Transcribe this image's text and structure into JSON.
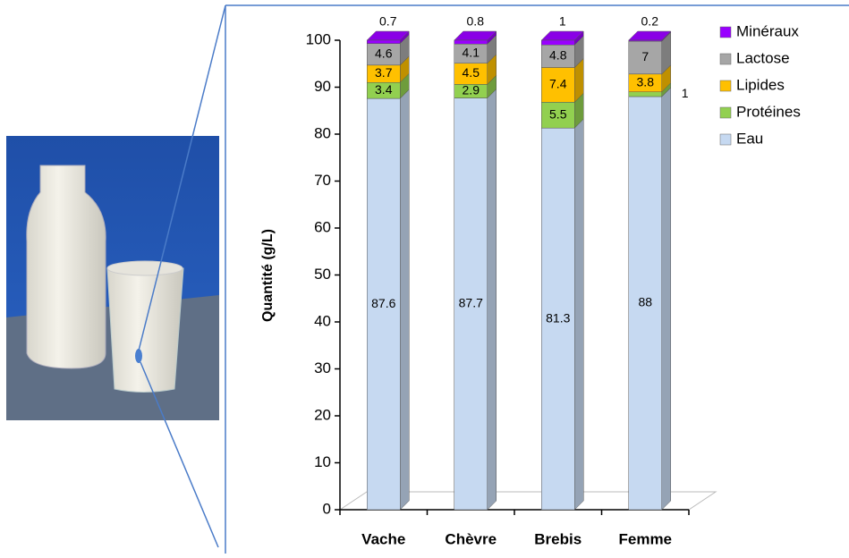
{
  "chart_data": {
    "type": "bar",
    "stacked": true,
    "y_label": "Quantité  (g/L)",
    "categories": [
      "Vache",
      "Chèvre",
      "Brebis",
      "Femme"
    ],
    "series": [
      {
        "name": "Eau",
        "color": "#c6d9f1",
        "values": [
          87.6,
          87.7,
          81.3,
          88
        ]
      },
      {
        "name": "Protéines",
        "color": "#92d050",
        "values": [
          3.4,
          2.9,
          5.5,
          1
        ]
      },
      {
        "name": "Lipides",
        "color": "#ffc000",
        "values": [
          3.7,
          4.5,
          7.4,
          3.8
        ]
      },
      {
        "name": "Lactose",
        "color": "#a6a6a6",
        "values": [
          4.6,
          4.1,
          4.8,
          7
        ]
      },
      {
        "name": "Minéraux",
        "color": "#9900ff",
        "values": [
          0.7,
          0.8,
          1,
          0.2
        ]
      }
    ],
    "ylim": [
      0,
      100
    ],
    "yticks": [
      0,
      10,
      20,
      30,
      40,
      50,
      60,
      70,
      80,
      90,
      100
    ],
    "legend": "top-right"
  }
}
